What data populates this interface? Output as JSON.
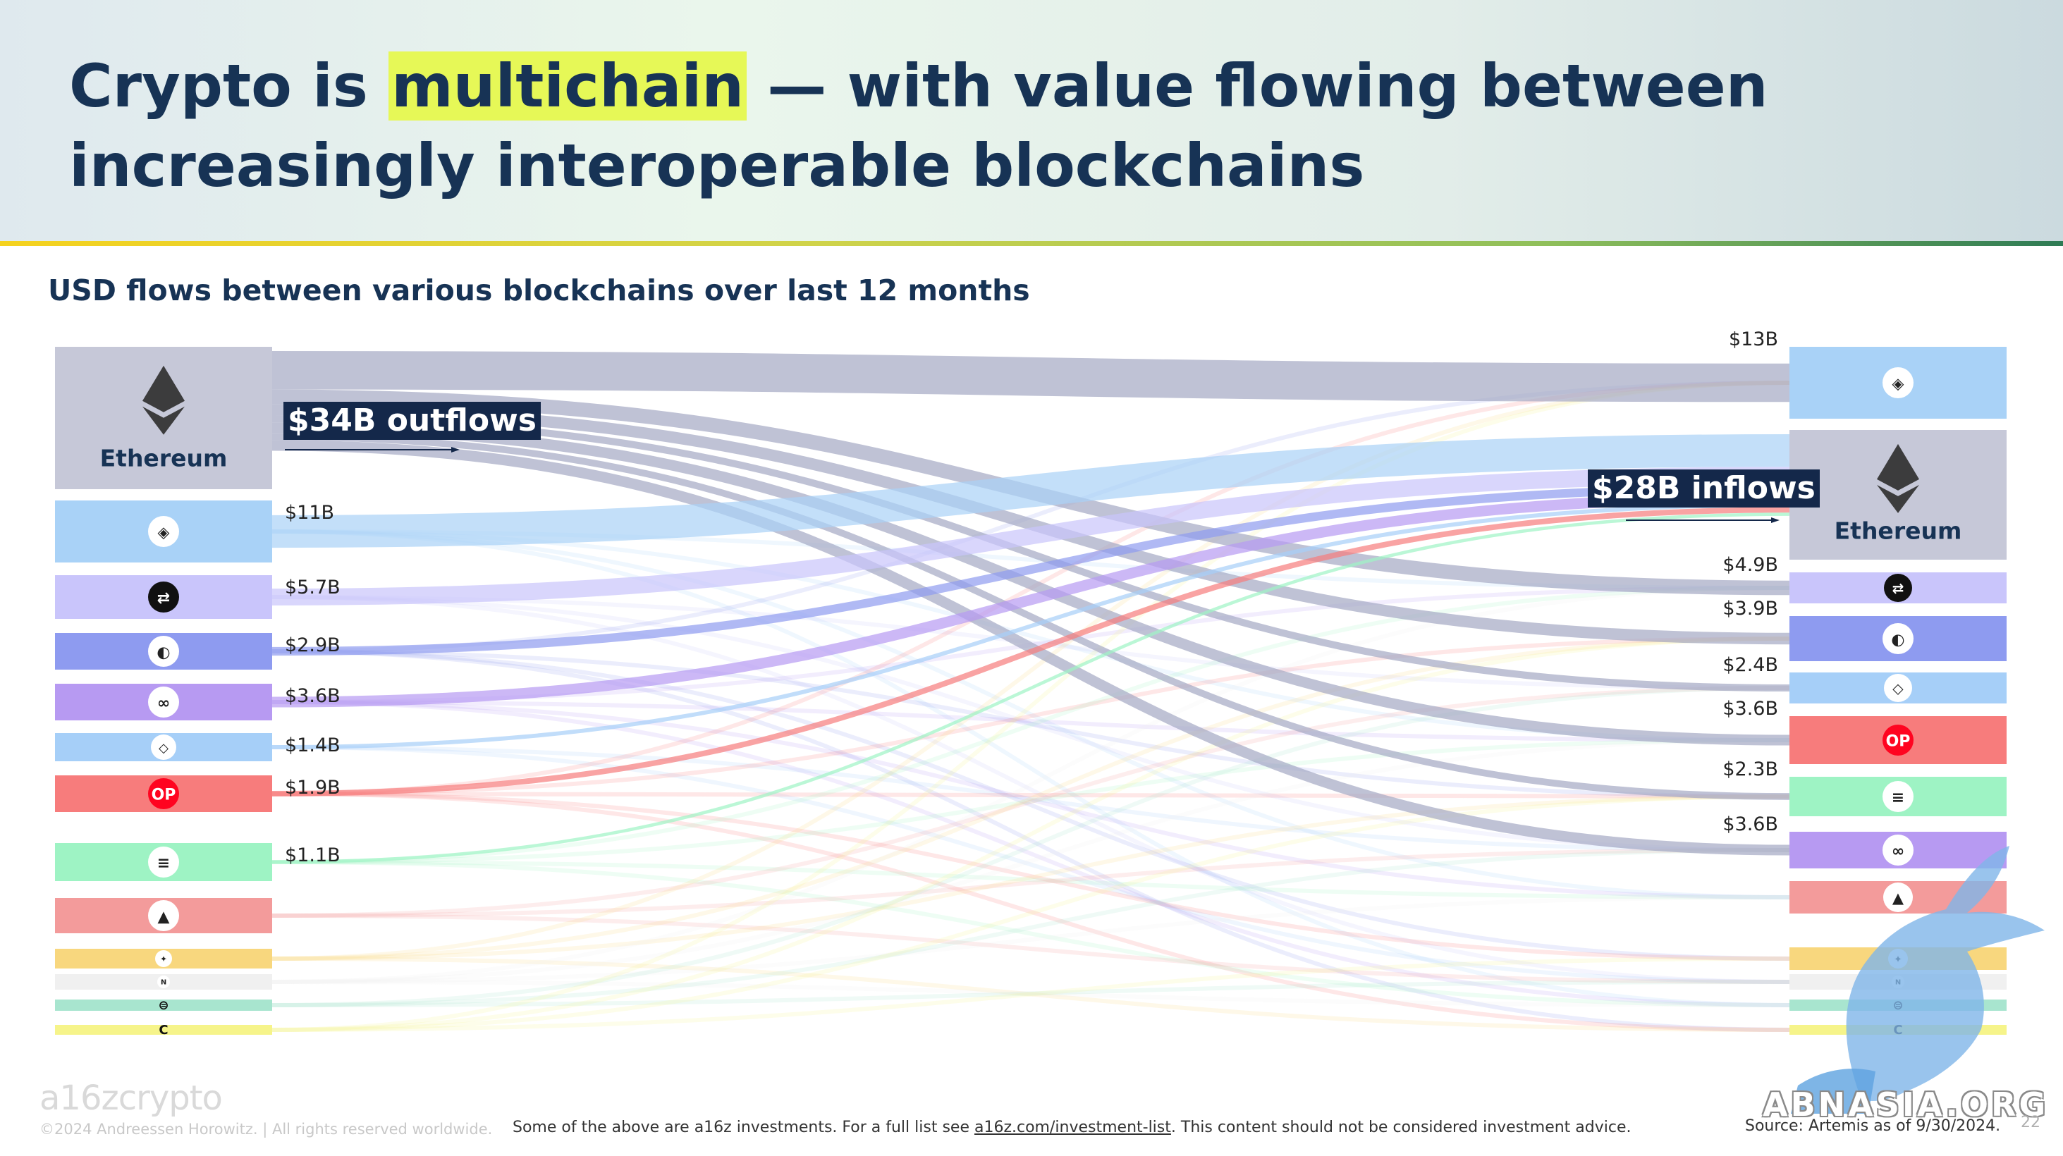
{
  "header": {
    "title_part1": "Crypto is ",
    "title_highlight": "multichain",
    "title_part2": " — with value flowing between increasingly interoperable blockchains"
  },
  "subtitle": "USD flows between various blockchains over last 12 months",
  "chart_data": {
    "type": "sankey",
    "title": "USD flows between various blockchains over last 12 months",
    "callouts": {
      "outflows": "$34B outflows",
      "inflows": "$28B inflows"
    },
    "sources": [
      {
        "id": "ethereum",
        "label": "Ethereum",
        "icon": "ethereum-icon",
        "color": "#c6c8d8"
      },
      {
        "id": "arbitrum",
        "label": "",
        "icon": "arbitrum-icon",
        "color": "#a9d2f7"
      },
      {
        "id": "base",
        "label": "",
        "icon": "base-swap-icon",
        "color": "#c9c5fb"
      },
      {
        "id": "blast",
        "label": "",
        "icon": "blast-circle-icon",
        "color": "#8e9bf0"
      },
      {
        "id": "polygon",
        "label": "",
        "icon": "polygon-icon",
        "color": "#b79af2"
      },
      {
        "id": "linea",
        "label": "",
        "icon": "drop-icon",
        "color": "#a6cff8"
      },
      {
        "id": "optimism",
        "label": "",
        "icon": "optimism-icon",
        "color": "#f77c7c"
      },
      {
        "id": "solana",
        "label": "",
        "icon": "solana-icon",
        "color": "#9ef3c4"
      },
      {
        "id": "avalanche",
        "label": "",
        "icon": "avalanche-icon",
        "color": "#f39b9b"
      },
      {
        "id": "bnb",
        "label": "",
        "icon": "bnb-icon",
        "color": "#f8d77e"
      },
      {
        "id": "near",
        "label": "",
        "icon": "near-icon",
        "color": "#f0f0f0"
      },
      {
        "id": "zksync",
        "label": "",
        "icon": "stripes-icon",
        "color": "#a8e5cf"
      },
      {
        "id": "celo",
        "label": "",
        "icon": "celo-icon",
        "color": "#f6f48a"
      }
    ],
    "targets": [
      {
        "id": "arbitrum",
        "label": "",
        "icon": "arbitrum-icon",
        "color": "#a9d2f7"
      },
      {
        "id": "ethereum",
        "label": "Ethereum",
        "icon": "ethereum-icon",
        "color": "#c6c8d8"
      },
      {
        "id": "base",
        "label": "",
        "icon": "base-swap-icon",
        "color": "#c9c5fb"
      },
      {
        "id": "blast",
        "label": "",
        "icon": "blast-circle-icon",
        "color": "#8e9bf0"
      },
      {
        "id": "linea",
        "label": "",
        "icon": "drop-icon",
        "color": "#a6cff8"
      },
      {
        "id": "optimism",
        "label": "",
        "icon": "optimism-icon",
        "color": "#f77c7c"
      },
      {
        "id": "solana",
        "label": "",
        "icon": "solana-icon",
        "color": "#9ef3c4"
      },
      {
        "id": "polygon",
        "label": "",
        "icon": "polygon-icon",
        "color": "#b79af2"
      },
      {
        "id": "avalanche",
        "label": "",
        "icon": "avalanche-icon",
        "color": "#f39b9b"
      },
      {
        "id": "bnb",
        "label": "",
        "icon": "bnb-icon",
        "color": "#f8d77e"
      },
      {
        "id": "near",
        "label": "",
        "icon": "near-icon",
        "color": "#f0f0f0"
      },
      {
        "id": "zksync",
        "label": "",
        "icon": "stripes-icon",
        "color": "#a8e5cf"
      },
      {
        "id": "celo",
        "label": "",
        "icon": "celo-icon",
        "color": "#f6f48a"
      }
    ],
    "source_values": [
      {
        "source": "arbitrum",
        "label": "$11B",
        "value": 11
      },
      {
        "source": "base",
        "label": "$5.7B",
        "value": 5.7
      },
      {
        "source": "blast",
        "label": "$2.9B",
        "value": 2.9
      },
      {
        "source": "polygon",
        "label": "$3.6B",
        "value": 3.6
      },
      {
        "source": "linea",
        "label": "$1.4B",
        "value": 1.4
      },
      {
        "source": "optimism",
        "label": "$1.9B",
        "value": 1.9
      },
      {
        "source": "solana",
        "label": "$1.1B",
        "value": 1.1
      }
    ],
    "target_values": [
      {
        "target": "arbitrum",
        "label": "$13B",
        "value": 13
      },
      {
        "target": "base",
        "label": "$4.9B",
        "value": 4.9
      },
      {
        "target": "blast",
        "label": "$3.9B",
        "value": 3.9
      },
      {
        "target": "linea",
        "label": "$2.4B",
        "value": 2.4
      },
      {
        "target": "optimism",
        "label": "$3.6B",
        "value": 3.6
      },
      {
        "target": "solana",
        "label": "$2.3B",
        "value": 2.3
      },
      {
        "target": "polygon",
        "label": "$3.6B",
        "value": 3.6
      }
    ],
    "flows": [
      {
        "from": "ethereum",
        "to": "arbitrum",
        "value": 13
      },
      {
        "from": "ethereum",
        "to": "base",
        "value": 4.9
      },
      {
        "from": "ethereum",
        "to": "blast",
        "value": 3.9
      },
      {
        "from": "ethereum",
        "to": "linea",
        "value": 2.4
      },
      {
        "from": "ethereum",
        "to": "optimism",
        "value": 3.6
      },
      {
        "from": "ethereum",
        "to": "solana",
        "value": 2.3
      },
      {
        "from": "ethereum",
        "to": "polygon",
        "value": 3.6
      },
      {
        "from": "arbitrum",
        "to": "ethereum",
        "value": 11
      },
      {
        "from": "base",
        "to": "ethereum",
        "value": 5.7
      },
      {
        "from": "blast",
        "to": "ethereum",
        "value": 2.9
      },
      {
        "from": "polygon",
        "to": "ethereum",
        "value": 3.6
      },
      {
        "from": "linea",
        "to": "ethereum",
        "value": 1.4
      },
      {
        "from": "optimism",
        "to": "ethereum",
        "value": 1.9
      },
      {
        "from": "solana",
        "to": "ethereum",
        "value": 1.1
      }
    ]
  },
  "footer": {
    "logo": "a16zcrypto",
    "copyright": "©2024 Andreessen Horowitz. | All rights reserved worldwide.",
    "note_before": "Some of the above are a16z investments. For a full list see ",
    "note_link": "a16z.com/investment-list",
    "note_after": ". This content should not be considered investment advice.",
    "source": "Source: Artemis as of 9/30/2024.",
    "page": "22"
  },
  "watermark": {
    "text": "ABNASIA.ORG"
  }
}
